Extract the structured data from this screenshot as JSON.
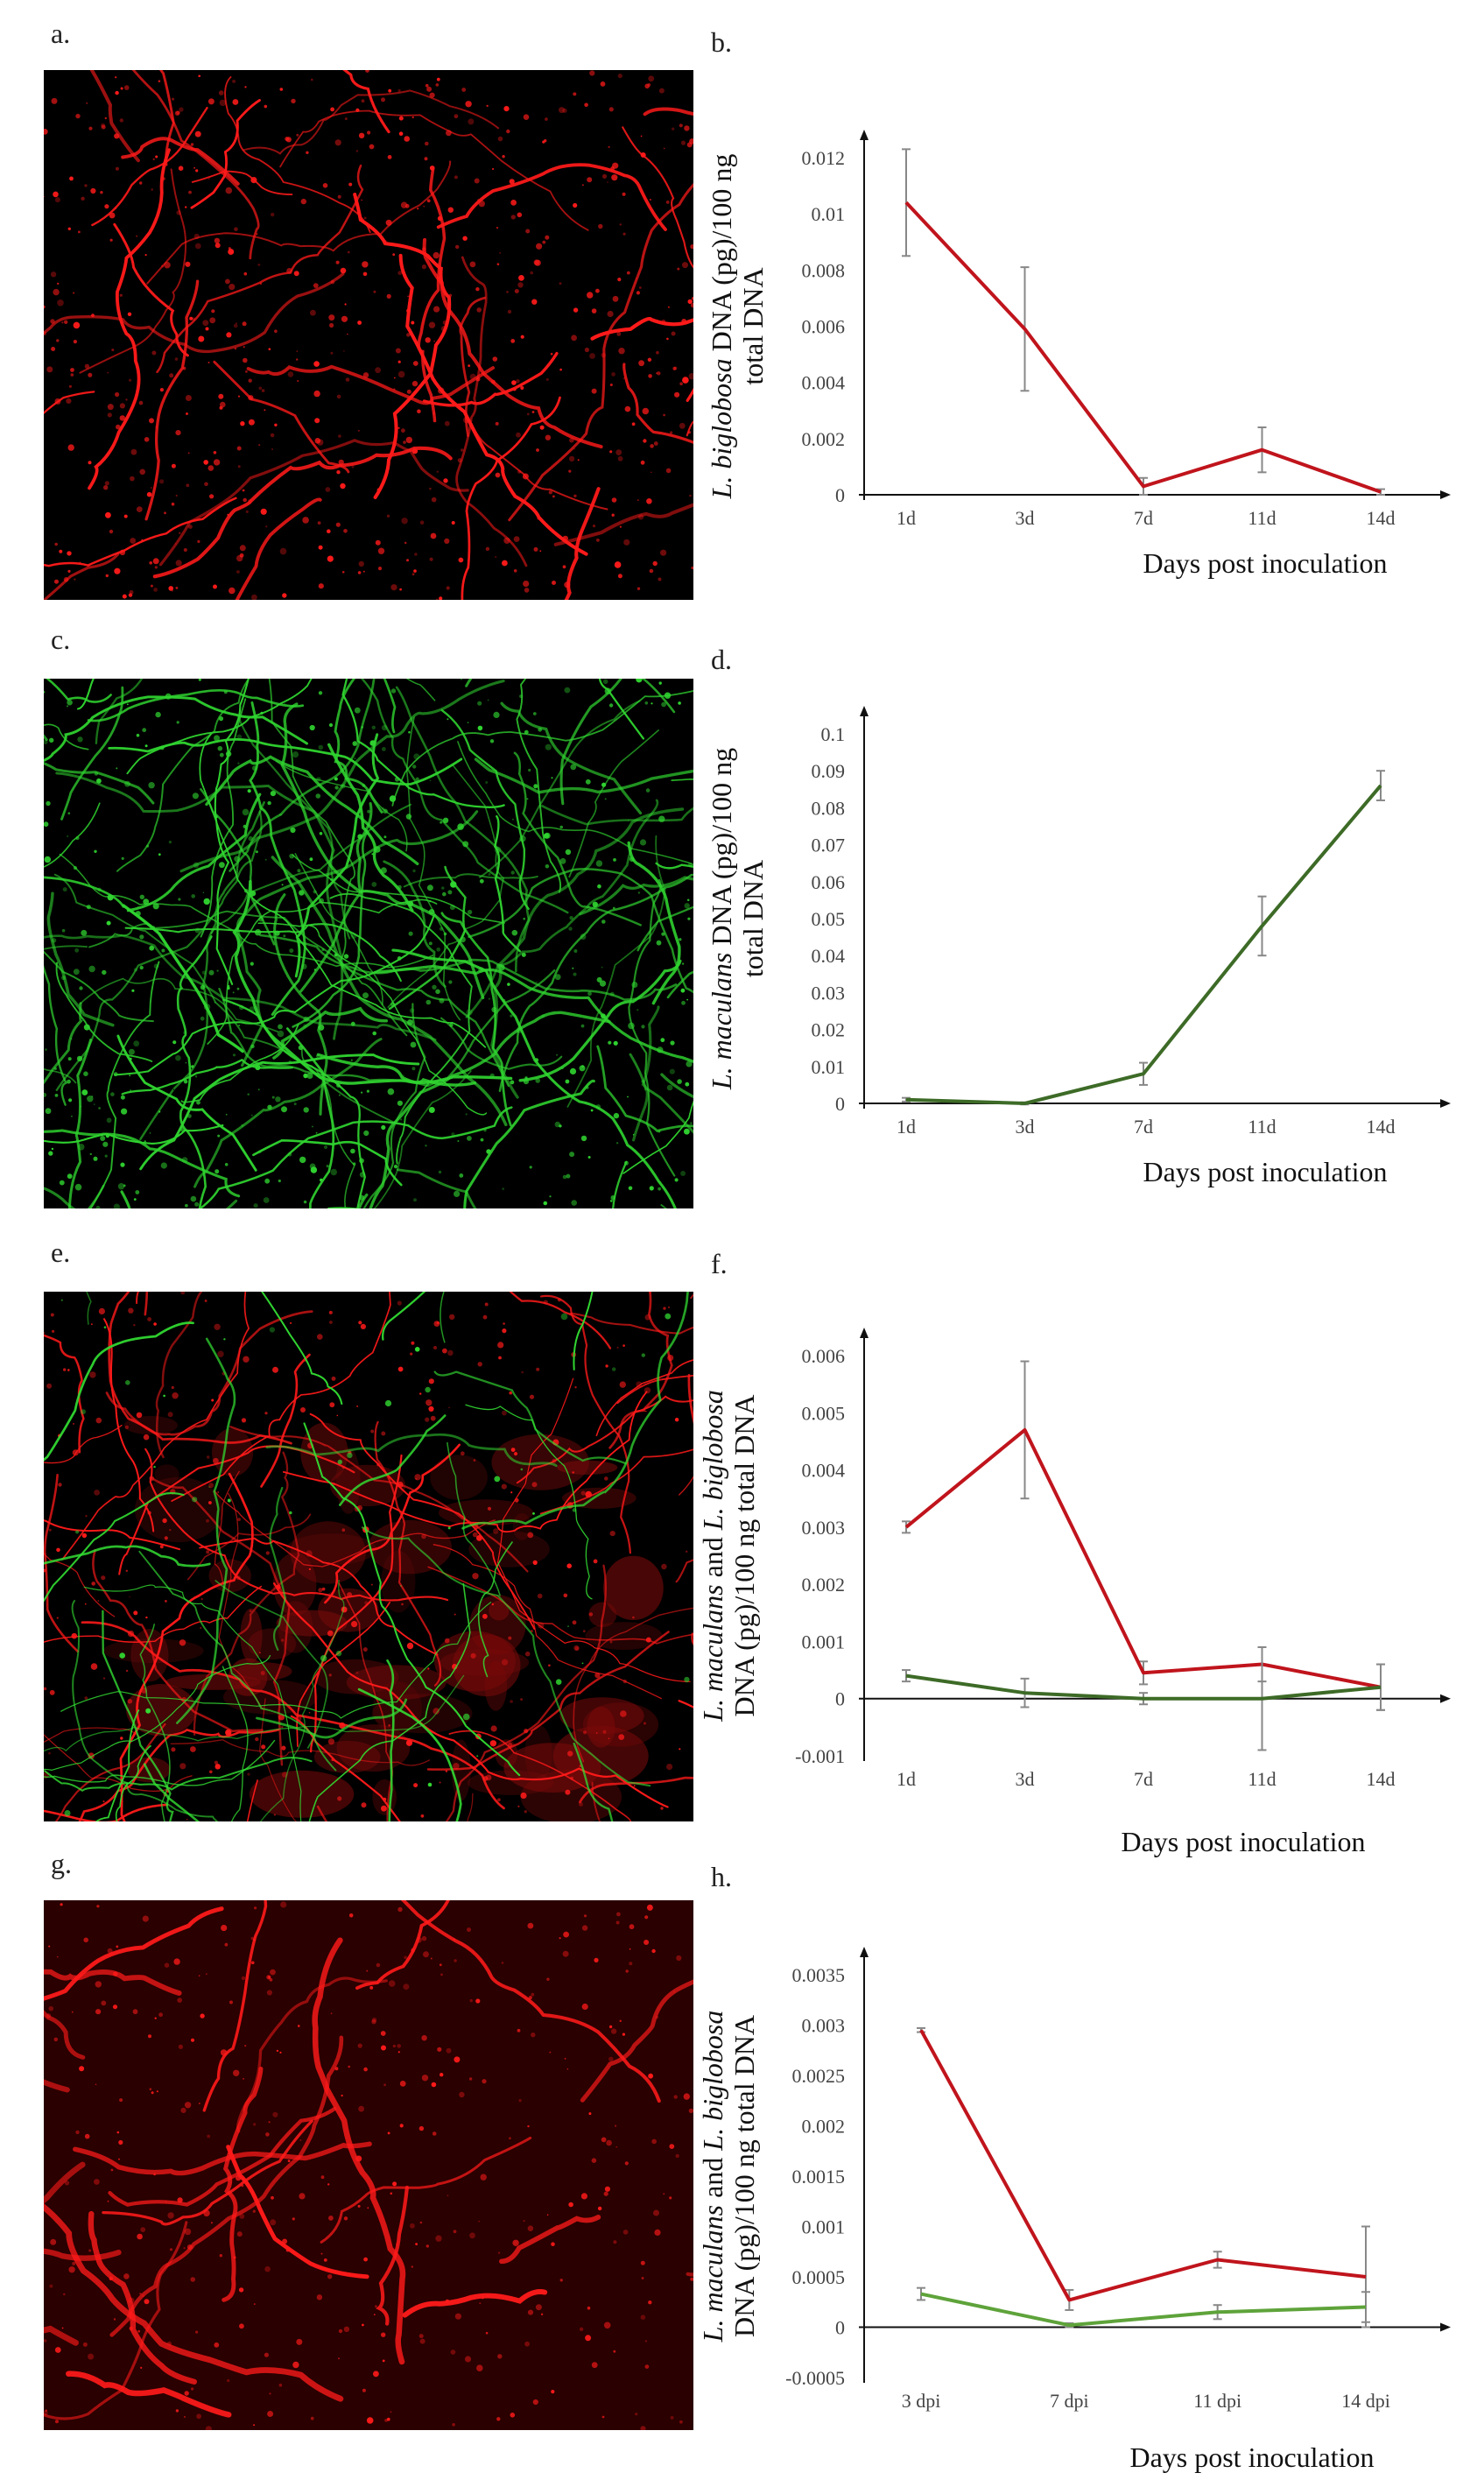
{
  "panels": {
    "a": "a.",
    "b": "b.",
    "c": "c.",
    "d": "d.",
    "e": "e.",
    "f": "f.",
    "g": "g.",
    "h": "h."
  },
  "colors": {
    "red_series": "#c0141c",
    "dark_green_series": "#3d6b27",
    "green_series": "#5ea33a",
    "micrograph_red": "#ff1a1a",
    "micrograph_green": "#33e033"
  },
  "micrographs": [
    {
      "panel": "a",
      "channels": [
        "red"
      ]
    },
    {
      "panel": "c",
      "channels": [
        "green"
      ]
    },
    {
      "panel": "e",
      "channels": [
        "red",
        "green"
      ]
    },
    {
      "panel": "g",
      "channels": [
        "red"
      ]
    }
  ],
  "chart_data": [
    {
      "panel": "b",
      "type": "line",
      "categories": [
        "1d",
        "3d",
        "7d",
        "11d",
        "14d"
      ],
      "series": [
        {
          "color": "#c0141c",
          "values": [
            0.0104,
            0.0059,
            0.0003,
            0.0016,
            0.0001
          ],
          "errors": [
            0.0019,
            0.0022,
            0.0003,
            0.0008,
            0.0001
          ]
        }
      ],
      "ylim": [
        0,
        0.012
      ],
      "yticks": [
        "0",
        "0.002",
        "0.004",
        "0.006",
        "0.008",
        "0.01",
        "0.012"
      ],
      "xlabel": "Days post inoculation",
      "ylabel_italic": "L. biglobosa",
      "ylabel_line1_rest": " DNA (pg)/100 ng",
      "ylabel_line2": "total DNA"
    },
    {
      "panel": "d",
      "type": "line",
      "categories": [
        "1d",
        "3d",
        "7d",
        "11d",
        "14d"
      ],
      "series": [
        {
          "color": "#3d6b27",
          "values": [
            0.001,
            0.0,
            0.008,
            0.048,
            0.086
          ],
          "errors": [
            0.0005,
            0.0003,
            0.003,
            0.008,
            0.004
          ]
        }
      ],
      "ylim": [
        0,
        0.1
      ],
      "yticks": [
        "0",
        "0.01",
        "0.02",
        "0.03",
        "0.04",
        "0.05",
        "0.06",
        "0.07",
        "0.08",
        "0.09",
        "0.1"
      ],
      "xlabel": "Days post inoculation",
      "ylabel_italic": "L. maculans",
      "ylabel_line1_rest": " DNA (pg)/100 ng",
      "ylabel_line2": "total DNA"
    },
    {
      "panel": "f",
      "type": "line",
      "categories": [
        "1d",
        "3d",
        "7d",
        "11d",
        "14d"
      ],
      "series": [
        {
          "color": "#c0141c",
          "values": [
            0.003,
            0.0047,
            0.00045,
            0.0006,
            0.0002
          ],
          "errors": [
            0.0001,
            0.0012,
            0.0002,
            0.0003,
            0.0004
          ]
        },
        {
          "color": "#3d6b27",
          "values": [
            0.0004,
            0.0001,
            0.0,
            0.0,
            0.0002
          ],
          "errors": [
            0.0001,
            0.00025,
            0.0001,
            0.0009,
            0.0004
          ]
        }
      ],
      "ylim": [
        -0.001,
        0.006
      ],
      "yticks": [
        "-0.001",
        "0",
        "0.001",
        "0.002",
        "0.003",
        "0.004",
        "0.005",
        "0.006"
      ],
      "xlabel": "Days post inoculation",
      "ylabel_line1_italic_a": "L. maculans",
      "ylabel_line1_mid": " and ",
      "ylabel_line1_italic_b": "L. biglobosa",
      "ylabel_line2": "DNA (pg)/100 ng total DNA"
    },
    {
      "panel": "h",
      "type": "line",
      "categories": [
        "3 dpi",
        "7 dpi",
        "11 dpi",
        "14 dpi"
      ],
      "series": [
        {
          "color": "#c0141c",
          "values": [
            0.00295,
            0.00027,
            0.00067,
            0.0005
          ],
          "errors": [
            2e-05,
            0.0001,
            8e-05,
            0.0005
          ]
        },
        {
          "color": "#5ea33a",
          "values": [
            0.00033,
            2e-05,
            0.00015,
            0.0002
          ],
          "errors": [
            6e-05,
            2e-05,
            7e-05,
            0.00015
          ]
        }
      ],
      "ylim": [
        -0.0005,
        0.0035
      ],
      "yticks": [
        "-0.0005",
        "0",
        "0.0005",
        "0.001",
        "0.0015",
        "0.002",
        "0.0025",
        "0.003",
        "0.0035"
      ],
      "xlabel": "Days post inoculation",
      "ylabel_line1_italic_a": "L. maculans",
      "ylabel_line1_mid": " and ",
      "ylabel_line1_italic_b": "L. biglobosa",
      "ylabel_line2": "DNA (pg)/100 ng total DNA"
    }
  ]
}
